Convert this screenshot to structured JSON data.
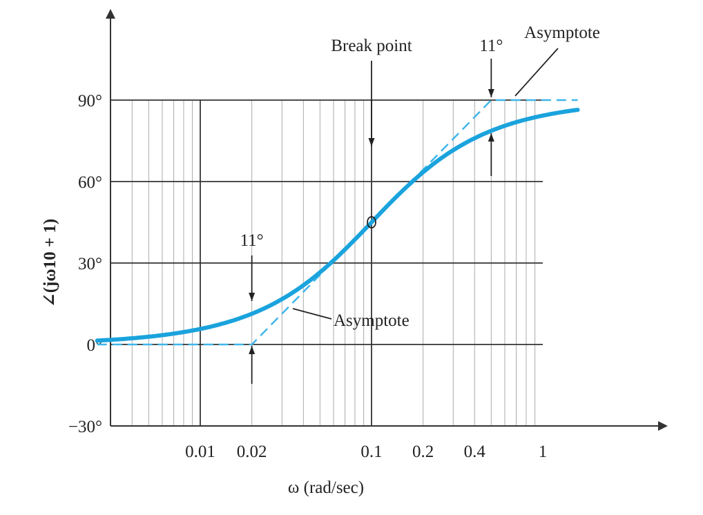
{
  "chart_data": {
    "type": "line",
    "title": "",
    "xlabel": "ω (rad/sec)",
    "ylabel": "∠(jω10 + 1)",
    "x_scale": "log",
    "xlim": [
      0.0025,
      1.6
    ],
    "ylim": [
      -30,
      120
    ],
    "x_ticks": [
      {
        "value": 0.01,
        "label": "0.01"
      },
      {
        "value": 0.02,
        "label": "0.02"
      },
      {
        "value": 0.1,
        "label": "0.1"
      },
      {
        "value": 0.2,
        "label": "0.2"
      },
      {
        "value": 0.4,
        "label": "0.4"
      },
      {
        "value": 1,
        "label": "1"
      }
    ],
    "y_ticks": [
      {
        "value": -30,
        "label": "−30°"
      },
      {
        "value": 0,
        "label": "0°"
      },
      {
        "value": 30,
        "label": "30°"
      },
      {
        "value": 60,
        "label": "60°"
      },
      {
        "value": 90,
        "label": "90°"
      }
    ],
    "grid": true,
    "series": [
      {
        "style": "solid",
        "color": "#1aa3dd",
        "formula": "phase = atan(10·ω) in degrees",
        "x": [
          0.0025,
          0.004,
          0.006,
          0.008,
          0.01,
          0.015,
          0.02,
          0.03,
          0.04,
          0.05,
          0.06,
          0.07,
          0.08,
          0.1,
          0.12,
          0.15,
          0.2,
          0.25,
          0.3,
          0.4,
          0.5,
          0.6,
          0.8,
          1.0,
          1.3,
          1.6
        ],
        "y": [
          1.4,
          2.3,
          3.4,
          4.6,
          5.7,
          8.5,
          11.3,
          16.7,
          21.8,
          26.6,
          31.0,
          35.0,
          38.7,
          45.0,
          50.2,
          56.3,
          63.4,
          68.2,
          71.6,
          76.0,
          78.7,
          80.5,
          82.9,
          84.3,
          85.6,
          86.4
        ]
      },
      {
        "style": "dashed",
        "color": "#3fb6ea",
        "x": [
          0.0025,
          0.02,
          0.5,
          1.6
        ],
        "y": [
          0,
          0,
          90,
          90
        ]
      }
    ],
    "annotations": [
      {
        "text": "Break point",
        "x": 0.1,
        "y": 45,
        "kind": "marker"
      },
      {
        "text": "11°",
        "x": 0.02,
        "y": 11.3,
        "kind": "error"
      },
      {
        "text": "11°",
        "x": 0.5,
        "y": 78.7,
        "kind": "error"
      },
      {
        "text": "Asymptote",
        "x": 0.04,
        "y": 13,
        "kind": "label"
      },
      {
        "text": "Asymptote",
        "x": 0.7,
        "y": 90,
        "kind": "label"
      }
    ]
  }
}
